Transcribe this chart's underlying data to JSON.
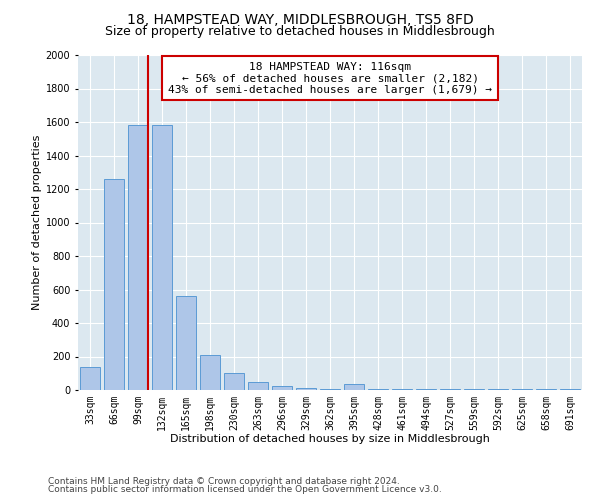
{
  "title": "18, HAMPSTEAD WAY, MIDDLESBROUGH, TS5 8FD",
  "subtitle": "Size of property relative to detached houses in Middlesbrough",
  "xlabel": "Distribution of detached houses by size in Middlesbrough",
  "ylabel": "Number of detached properties",
  "footnote1": "Contains HM Land Registry data © Crown copyright and database right 2024.",
  "footnote2": "Contains public sector information licensed under the Open Government Licence v3.0.",
  "bins": [
    "33sqm",
    "66sqm",
    "99sqm",
    "132sqm",
    "165sqm",
    "198sqm",
    "230sqm",
    "263sqm",
    "296sqm",
    "329sqm",
    "362sqm",
    "395sqm",
    "428sqm",
    "461sqm",
    "494sqm",
    "527sqm",
    "559sqm",
    "592sqm",
    "625sqm",
    "658sqm",
    "691sqm"
  ],
  "values": [
    140,
    1260,
    1580,
    1580,
    560,
    210,
    100,
    50,
    25,
    10,
    5,
    35,
    5,
    5,
    5,
    5,
    5,
    5,
    5,
    5,
    5
  ],
  "bar_color": "#aec6e8",
  "bar_edge_color": "#5b9bd5",
  "vline_color": "#cc0000",
  "annotation_line1": "18 HAMPSTEAD WAY: 116sqm",
  "annotation_line2": "← 56% of detached houses are smaller (2,182)",
  "annotation_line3": "43% of semi-detached houses are larger (1,679) →",
  "annotation_box_color": "#ffffff",
  "annotation_box_edge_color": "#cc0000",
  "ylim": [
    0,
    2000
  ],
  "yticks": [
    0,
    200,
    400,
    600,
    800,
    1000,
    1200,
    1400,
    1600,
    1800,
    2000
  ],
  "plot_bg_color": "#dce8f0",
  "title_fontsize": 10,
  "subtitle_fontsize": 9,
  "axis_label_fontsize": 8,
  "tick_fontsize": 7,
  "footnote_fontsize": 6.5
}
